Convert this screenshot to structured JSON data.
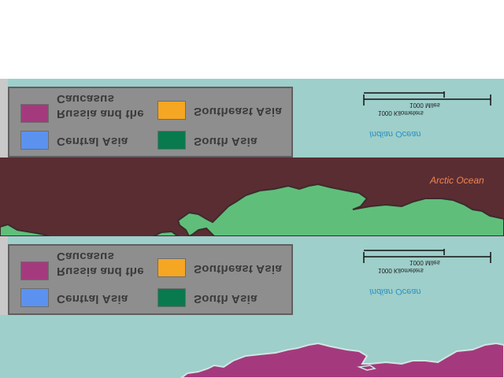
{
  "legend": {
    "items": [
      {
        "label_line1": "Caucasus",
        "label_line2": "Russia and the",
        "color": "#a43a7d"
      },
      {
        "label": "Central Asia",
        "color": "#5b92f0"
      },
      {
        "label": "Southeast Asia",
        "color": "#f5a623"
      },
      {
        "label": "South Asia",
        "color": "#087a4e"
      }
    ]
  },
  "labels": {
    "indian_ocean": "Indian Ocean",
    "arctic_ocean": "Arctic Ocean"
  },
  "scale_bar": {
    "miles": "1000 Miles",
    "kilometers": "1000 Kilometers"
  },
  "colors": {
    "ocean": "#9ecfca",
    "arctic_region": "#5a2d33",
    "land_green": "#5fbf7a",
    "land_purple": "#a43a7d",
    "legend_bg": "#8e8e8e"
  }
}
